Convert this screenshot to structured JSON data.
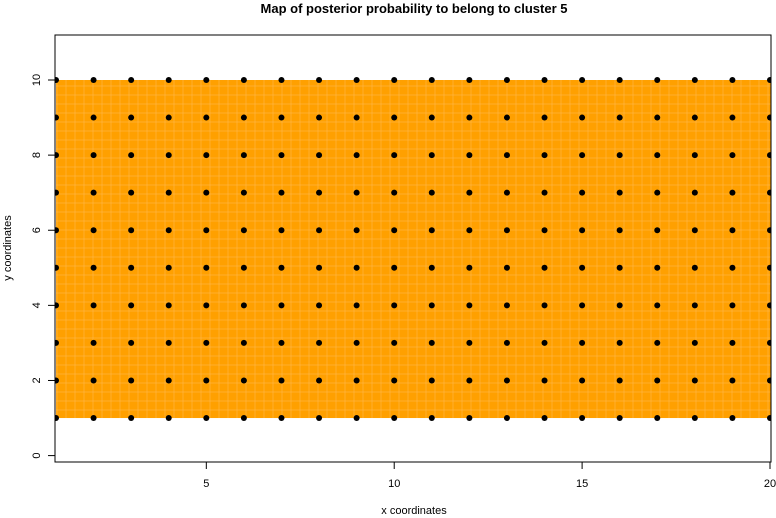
{
  "chart_data": {
    "type": "heatmap",
    "title": "Map of posterior probability to belong to cluster  5",
    "xlabel": "x coordinates",
    "ylabel": "y coordinates",
    "xlim": [
      1,
      20
    ],
    "ylim": [
      0,
      10
    ],
    "xticks": [
      5,
      10,
      15,
      20
    ],
    "yticks": [
      0,
      2,
      4,
      6,
      8,
      10
    ],
    "grid": false,
    "fill_color": "#FFA000",
    "fill_region": {
      "x": [
        1,
        20
      ],
      "y": [
        1,
        10
      ]
    },
    "points": {
      "x": [
        1,
        2,
        3,
        4,
        5,
        6,
        7,
        8,
        9,
        10,
        11,
        12,
        13,
        14,
        15,
        16,
        17,
        18,
        19,
        20
      ],
      "y": [
        1,
        2,
        3,
        4,
        5,
        6,
        7,
        8,
        9,
        10
      ],
      "color": "#000000"
    }
  }
}
